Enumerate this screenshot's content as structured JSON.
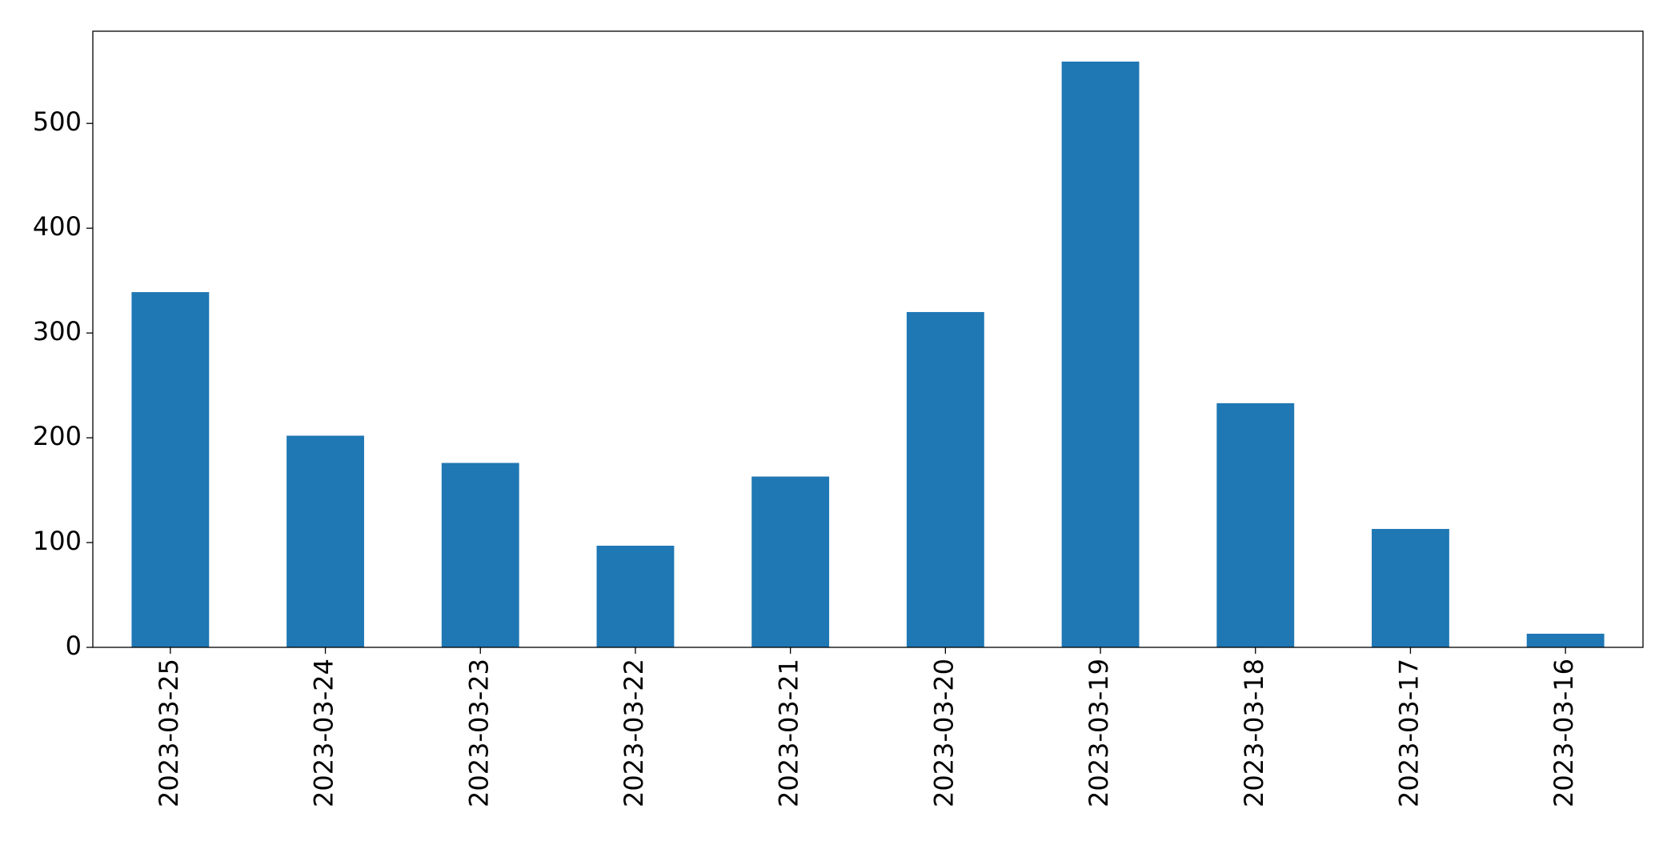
{
  "chart_data": {
    "type": "bar",
    "categories": [
      "2023-03-25",
      "2023-03-24",
      "2023-03-23",
      "2023-03-22",
      "2023-03-21",
      "2023-03-20",
      "2023-03-19",
      "2023-03-18",
      "2023-03-17",
      "2023-03-16"
    ],
    "values": [
      339,
      202,
      176,
      97,
      163,
      320,
      559,
      233,
      113,
      13
    ],
    "color": "#1f77b4",
    "ylim": [
      0,
      588
    ],
    "yticks": [
      0,
      100,
      200,
      300,
      400,
      500
    ],
    "grid": false
  }
}
